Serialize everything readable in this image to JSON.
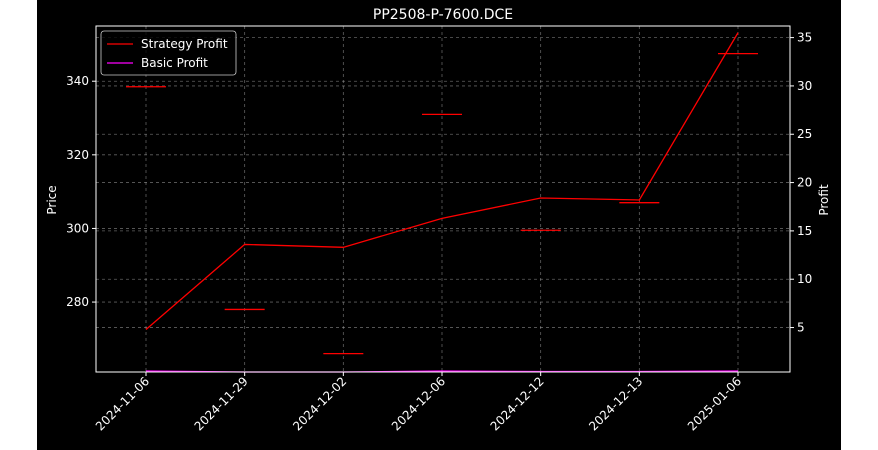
{
  "chart_data": {
    "type": "line",
    "title": "PP2508-P-7600.DCE",
    "x": [
      "2024-11-06",
      "2024-11-29",
      "2024-12-02",
      "2024-12-06",
      "2024-12-12",
      "2024-12-13",
      "2025-01-06"
    ],
    "left_axis": {
      "label": "Price",
      "ticks": [
        280,
        300,
        320,
        340
      ],
      "range": [
        261,
        355
      ]
    },
    "right_axis": {
      "label": "Profit",
      "ticks": [
        5,
        10,
        15,
        20,
        25,
        30,
        35
      ],
      "range": [
        0.4,
        36.2
      ]
    },
    "price_markers": {
      "axis": "left",
      "color": "#ff0000",
      "values": [
        338.5,
        278.0,
        266.0,
        331.0,
        299.5,
        307.0,
        347.5
      ]
    },
    "series": [
      {
        "name": "Strategy Profit",
        "axis": "right",
        "color": "#ff0000",
        "values": [
          4.8,
          13.6,
          13.3,
          16.3,
          18.4,
          18.2,
          35.5
        ]
      },
      {
        "name": "Basic Profit",
        "axis": "right",
        "color": "#ff00ff",
        "values": [
          0.5,
          0.4,
          0.4,
          0.5,
          0.45,
          0.45,
          0.5
        ]
      }
    ],
    "grid": true,
    "legend_position": "upper-left"
  }
}
